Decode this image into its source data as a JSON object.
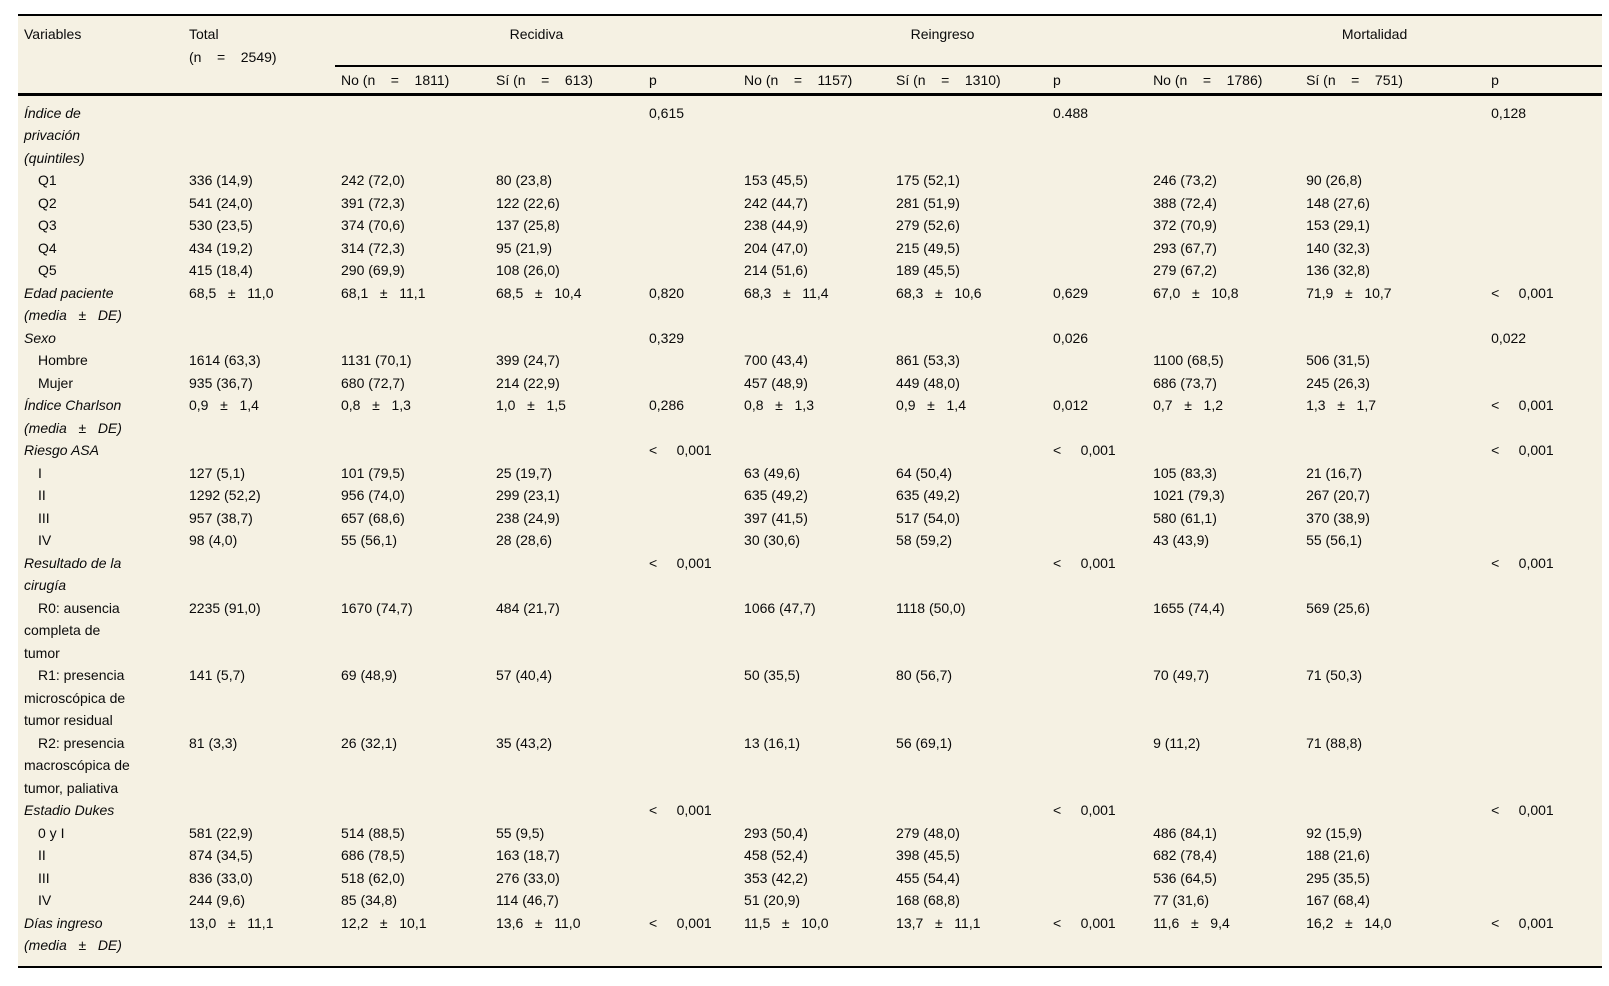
{
  "page": {
    "background_color": "#ffffff",
    "panel_color": "#f5f1e3",
    "rule_color": "#000000"
  },
  "table": {
    "header": {
      "variables_label": "Variables",
      "total_label": "Total\n(n    =    2549)",
      "groups": [
        {
          "label": "Recidiva",
          "no": "No (n    =    1811)",
          "si": "Sí (n    =    613)",
          "p": "p"
        },
        {
          "label": "Reingreso",
          "no": "No (n    =    1157)",
          "si": "Sí (n    =    1310)",
          "p": "p"
        },
        {
          "label": "Mortalidad",
          "no": "No (n    =    1786)",
          "si": "Sí (n    =    751)",
          "p": "p"
        }
      ]
    },
    "rows": [
      {
        "type": "variable",
        "label": "Índice de\nprivación\n(quintiles)",
        "cells": [
          "",
          "",
          "",
          "0,615",
          "",
          "",
          "0.488",
          "",
          "",
          "0,128"
        ]
      },
      {
        "type": "category",
        "label": "Q1",
        "cells": [
          "336 (14,9)",
          "242 (72,0)",
          "80 (23,8)",
          "",
          "153 (45,5)",
          "175 (52,1)",
          "",
          "246 (73,2)",
          "90 (26,8)",
          ""
        ]
      },
      {
        "type": "category",
        "label": "Q2",
        "cells": [
          "541 (24,0)",
          "391 (72,3)",
          "122 (22,6)",
          "",
          "242 (44,7)",
          "281 (51,9)",
          "",
          "388 (72,4)",
          "148 (27,6)",
          ""
        ]
      },
      {
        "type": "category",
        "label": "Q3",
        "cells": [
          "530 (23,5)",
          "374 (70,6)",
          "137 (25,8)",
          "",
          "238 (44,9)",
          "279 (52,6)",
          "",
          "372 (70,9)",
          "153 (29,1)",
          ""
        ]
      },
      {
        "type": "category",
        "label": "Q4",
        "cells": [
          "434 (19,2)",
          "314 (72,3)",
          "95 (21,9)",
          "",
          "204 (47,0)",
          "215 (49,5)",
          "",
          "293 (67,7)",
          "140 (32,3)",
          ""
        ]
      },
      {
        "type": "category",
        "label": "Q5",
        "cells": [
          "415 (18,4)",
          "290 (69,9)",
          "108 (26,0)",
          "",
          "214 (51,6)",
          "189 (45,5)",
          "",
          "279 (67,2)",
          "136 (32,8)",
          ""
        ]
      },
      {
        "type": "variable",
        "label": "Edad paciente\n(media   ±   DE)",
        "cells": [
          "68,5   ±   11,0",
          "68,1   ±   11,1",
          "68,5   ±   10,4",
          "0,820",
          "68,3   ±   11,4",
          "68,3   ±   10,6",
          "0,629",
          "67,0   ±   10,8",
          "71,9   ±   10,7",
          "<     0,001"
        ]
      },
      {
        "type": "variable",
        "label": "Sexo",
        "cells": [
          "",
          "",
          "",
          "0,329",
          "",
          "",
          "0,026",
          "",
          "",
          "0,022"
        ]
      },
      {
        "type": "category",
        "label": "Hombre",
        "cells": [
          "1614 (63,3)",
          "1131 (70,1)",
          "399 (24,7)",
          "",
          "700 (43,4)",
          "861 (53,3)",
          "",
          "1100 (68,5)",
          "506 (31,5)",
          ""
        ]
      },
      {
        "type": "category",
        "label": "Mujer",
        "cells": [
          "935 (36,7)",
          "680 (72,7)",
          "214 (22,9)",
          "",
          "457 (48,9)",
          "449 (48,0)",
          "",
          "686 (73,7)",
          "245 (26,3)",
          ""
        ]
      },
      {
        "type": "variable",
        "label": "Índice Charlson\n(media   ±   DE)",
        "cells": [
          "0,9   ±   1,4",
          "0,8   ±   1,3",
          "1,0   ±   1,5",
          "0,286",
          "0,8   ±   1,3",
          "0,9   ±   1,4",
          "0,012",
          "0,7   ±   1,2",
          "1,3   ±   1,7",
          "<     0,001"
        ]
      },
      {
        "type": "variable",
        "label": "Riesgo ASA",
        "cells": [
          "",
          "",
          "",
          "<     0,001",
          "",
          "",
          "<     0,001",
          "",
          "",
          "<     0,001"
        ]
      },
      {
        "type": "category",
        "label": "I",
        "cells": [
          "127 (5,1)",
          "101 (79,5)",
          "25 (19,7)",
          "",
          "63 (49,6)",
          "64 (50,4)",
          "",
          "105 (83,3)",
          "21 (16,7)",
          ""
        ]
      },
      {
        "type": "category",
        "label": "II",
        "cells": [
          "1292 (52,2)",
          "956 (74,0)",
          "299 (23,1)",
          "",
          "635 (49,2)",
          "635 (49,2)",
          "",
          "1021 (79,3)",
          "267 (20,7)",
          ""
        ]
      },
      {
        "type": "category",
        "label": "III",
        "cells": [
          "957 (38,7)",
          "657 (68,6)",
          "238 (24,9)",
          "",
          "397 (41,5)",
          "517 (54,0)",
          "",
          "580 (61,1)",
          "370 (38,9)",
          ""
        ]
      },
      {
        "type": "category",
        "label": "IV",
        "cells": [
          "98 (4,0)",
          "55 (56,1)",
          "28 (28,6)",
          "",
          "30 (30,6)",
          "58 (59,2)",
          "",
          "43 (43,9)",
          "55 (56,1)",
          ""
        ]
      },
      {
        "type": "variable",
        "label": "Resultado de la\ncirugía",
        "cells": [
          "",
          "",
          "",
          "<     0,001",
          "",
          "",
          "<     0,001",
          "",
          "",
          "<     0,001"
        ]
      },
      {
        "type": "category",
        "label": "R0: ausencia\ncompleta de\ntumor",
        "cells": [
          "2235 (91,0)",
          "1670 (74,7)",
          "484 (21,7)",
          "",
          "1066 (47,7)",
          "1118 (50,0)",
          "",
          "1655 (74,4)",
          "569 (25,6)",
          ""
        ]
      },
      {
        "type": "category",
        "label": "R1: presencia\nmicroscópica de\ntumor residual",
        "cells": [
          "141 (5,7)",
          "69 (48,9)",
          "57 (40,4)",
          "",
          "50 (35,5)",
          "80 (56,7)",
          "",
          "70 (49,7)",
          "71 (50,3)",
          ""
        ]
      },
      {
        "type": "category",
        "label": "R2: presencia\nmacroscópica de\ntumor, paliativa",
        "cells": [
          "81 (3,3)",
          "26 (32,1)",
          "35 (43,2)",
          "",
          "13 (16,1)",
          "56 (69,1)",
          "",
          "9 (11,2)",
          "71 (88,8)",
          ""
        ]
      },
      {
        "type": "variable",
        "label": "Estadio Dukes",
        "cells": [
          "",
          "",
          "",
          "<     0,001",
          "",
          "",
          "<     0,001",
          "",
          "",
          "<     0,001"
        ]
      },
      {
        "type": "category",
        "label": "0 y I",
        "cells": [
          "581 (22,9)",
          "514 (88,5)",
          "55 (9,5)",
          "",
          "293 (50,4)",
          "279 (48,0)",
          "",
          "486 (84,1)",
          "92 (15,9)",
          ""
        ]
      },
      {
        "type": "category",
        "label": "II",
        "cells": [
          "874 (34,5)",
          "686 (78,5)",
          "163 (18,7)",
          "",
          "458 (52,4)",
          "398 (45,5)",
          "",
          "682 (78,4)",
          "188 (21,6)",
          ""
        ]
      },
      {
        "type": "category",
        "label": "III",
        "cells": [
          "836 (33,0)",
          "518 (62,0)",
          "276 (33,0)",
          "",
          "353 (42,2)",
          "455 (54,4)",
          "",
          "536 (64,5)",
          "295 (35,5)",
          ""
        ]
      },
      {
        "type": "category",
        "label": "IV",
        "cells": [
          "244 (9,6)",
          "85 (34,8)",
          "114 (46,7)",
          "",
          "51 (20,9)",
          "168 (68,8)",
          "",
          "77 (31,6)",
          "167 (68,4)",
          ""
        ]
      },
      {
        "type": "variable",
        "label": "Días ingreso\n(media   ±   DE)",
        "cells": [
          "13,0   ±   11,1",
          "12,2   ±   10,1",
          "13,6   ±   11,0",
          "<     0,001",
          "11,5   ±   10,0",
          "13,7   ±   11,1",
          "<     0,001",
          "11,6   ±   9,4",
          "16,2   ±   14,0",
          "<     0,001"
        ]
      }
    ]
  }
}
